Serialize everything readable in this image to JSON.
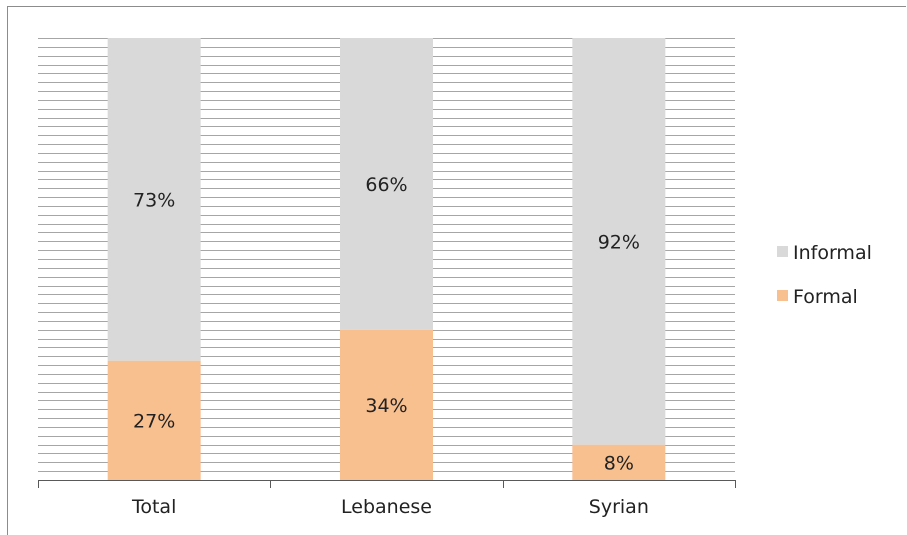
{
  "chart_data": {
    "type": "bar",
    "stacked": "percent",
    "categories": [
      "Total",
      "Lebanese",
      "Syrian"
    ],
    "series": [
      {
        "name": "Formal",
        "values": [
          27,
          34,
          8
        ],
        "labels": [
          "27%",
          "34%",
          "8%"
        ],
        "color": "#f8bf8f"
      },
      {
        "name": "Informal",
        "values": [
          73,
          66,
          92
        ],
        "labels": [
          "73%",
          "66%",
          "92%"
        ],
        "color": "#d9d9d9"
      }
    ],
    "ylim": [
      0,
      100
    ],
    "grid": true,
    "gridline_color": "#a6a6a6",
    "legend": {
      "position": "right",
      "order": [
        "Informal",
        "Formal"
      ]
    },
    "title": "",
    "xlabel": "",
    "ylabel": ""
  }
}
